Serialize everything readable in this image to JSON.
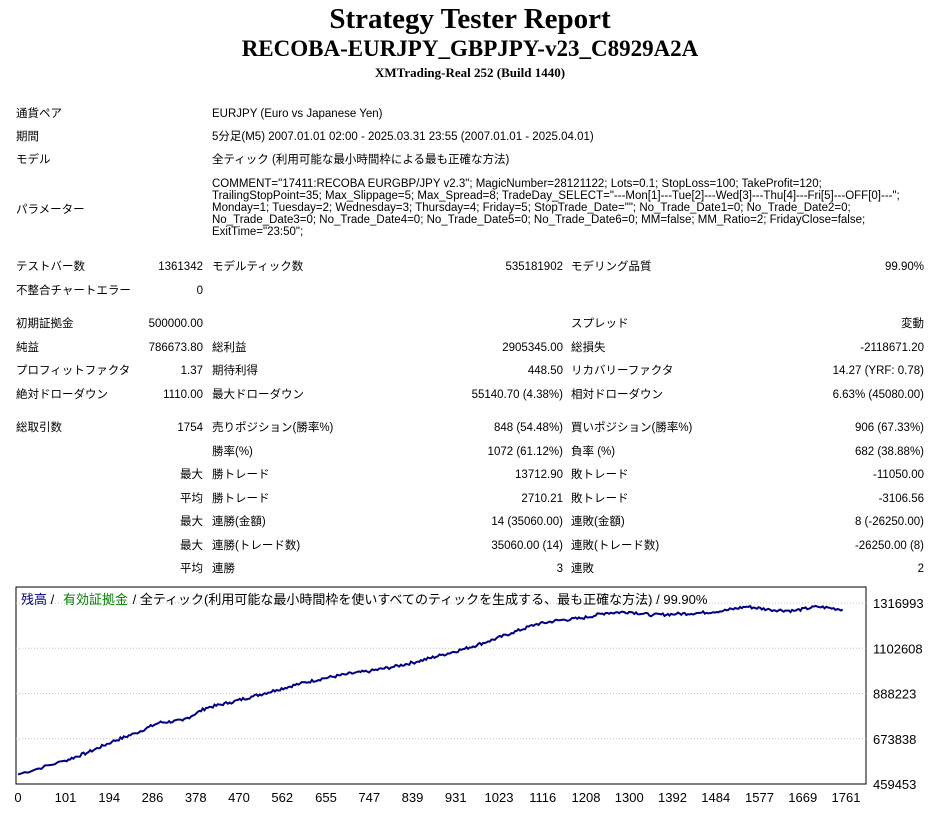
{
  "header": {
    "title": "Strategy Tester Report",
    "ea_name": "RECOBA-EURJPY_GBPJPY-v23_C8929A2A",
    "server": "XMTrading-Real 252 (Build 1440)"
  },
  "info": {
    "symbol_label": "通貨ペア",
    "symbol_value": "EURJPY (Euro vs Japanese Yen)",
    "period_label": "期間",
    "period_value": "5分足(M5) 2007.01.01 02:00 - 2025.03.31 23:55 (2007.01.01 - 2025.04.01)",
    "model_label": "モデル",
    "model_value": "全ティック (利用可能な最小時間枠による最も正確な方法)",
    "params_label": "パラメーター",
    "params_lines": [
      "COMMENT=\"17411:RECOBA EURGBP/JPY v2.3\"; MagicNumber=28121122; Lots=0.1; StopLoss=100; TakeProfit=120;",
      "TrailingStopPoint=35; Max_Slippage=5; Max_Spread=8; TradeDay_SELECT=\"---Mon[1]---Tue[2]---Wed[3]---Thu[4]---Fri[5]---OFF[0]---\";",
      "Monday=1; Tuesday=2; Wednesday=3; Thursday=4; Friday=5; StopTrade_Date=\"\"; No_Trade_Date1=0; No_Trade_Date2=0;",
      "No_Trade_Date3=0; No_Trade_Date4=0; No_Trade_Date5=0; No_Trade_Date6=0; MM=false; MM_Ratio=2; FridayClose=false;",
      "ExitTime=\"23:50\";"
    ]
  },
  "stats": {
    "bars_label": "テストバー数",
    "bars_value": "1361342",
    "ticks_label": "モデルティック数",
    "ticks_value": "535181902",
    "quality_label": "モデリング品質",
    "quality_value": "99.90%",
    "mismatch_label": "不整合チャートエラー",
    "mismatch_value": "0",
    "deposit_label": "初期証拠金",
    "deposit_value": "500000.00",
    "spread_label": "スプレッド",
    "spread_value": "変動",
    "net_label": "純益",
    "net_value": "786673.80",
    "gross_profit_label": "総利益",
    "gross_profit_value": "2905345.00",
    "gross_loss_label": "総損失",
    "gross_loss_value": "-2118671.20",
    "pf_label": "プロフィットファクタ",
    "pf_value": "1.37",
    "expected_label": "期待利得",
    "expected_value": "448.50",
    "recovery_label": "リカバリーファクタ",
    "recovery_value": "14.27 (YRF: 0.78)",
    "abs_dd_label": "絶対ドローダウン",
    "abs_dd_value": "1110.00",
    "max_dd_label": "最大ドローダウン",
    "max_dd_value": "55140.70 (4.38%)",
    "rel_dd_label": "相対ドローダウン",
    "rel_dd_value": "6.63% (45080.00)",
    "trades_label": "総取引数",
    "trades_value": "1754",
    "short_label": "売りポジション(勝率%)",
    "short_value": "848 (54.48%)",
    "long_label": "買いポジション(勝率%)",
    "long_value": "906 (67.33%)",
    "winrate_label": "勝率(%)",
    "winrate_value": "1072 (61.12%)",
    "lossrate_label": "負率 (%)",
    "lossrate_value": "682 (38.88%)",
    "max_label": "最大",
    "avg_label": "平均",
    "largest_win_label": "勝トレード",
    "largest_win_value": "13712.90",
    "largest_loss_label": "敗トレード",
    "largest_loss_value": "-11050.00",
    "avg_win_label": "勝トレード",
    "avg_win_value": "2710.21",
    "avg_loss_label": "敗トレード",
    "avg_loss_value": "-3106.56",
    "max_consec_wins_label": "連勝(金額)",
    "max_consec_wins_value": "14 (35060.00)",
    "max_consec_losses_label": "連敗(金額)",
    "max_consec_losses_value": "8 (-26250.00)",
    "max_consec_profit_label": "連勝(トレード数)",
    "max_consec_profit_value": "35060.00 (14)",
    "max_consec_loss_label": "連敗(トレード数)",
    "max_consec_loss_value": "-26250.00 (8)",
    "avg_consec_wins_label": "連勝",
    "avg_consec_wins_value": "3",
    "avg_consec_losses_label": "連敗",
    "avg_consec_losses_value": "2"
  },
  "chart_legend": {
    "balance": "残高",
    "sep1": " / ",
    "equity": "有効証拠金",
    "rest": " / 全ティック(利用可能な最小時間枠を使いすべてのティックを生成する、最も正確な方法) / 99.90%"
  },
  "colors": {
    "balance": "#000080",
    "equity": "#008000",
    "grid": "#c0c0c0"
  },
  "chart_data": {
    "type": "line",
    "title": "",
    "xlabel": "",
    "ylabel": "",
    "x_ticks": [
      "0",
      "101",
      "194",
      "286",
      "378",
      "470",
      "562",
      "655",
      "747",
      "839",
      "931",
      "1023",
      "1116",
      "1208",
      "1300",
      "1392",
      "1484",
      "1577",
      "1669",
      "1761"
    ],
    "y_ticks": [
      "1316993",
      "1102608",
      "888223",
      "673838",
      "459453"
    ],
    "xlim": [
      0,
      1761
    ],
    "ylim": [
      459453,
      1316993
    ],
    "series": [
      {
        "name": "残高",
        "x": [
          0,
          100,
          150,
          200,
          250,
          300,
          350,
          400,
          450,
          500,
          550,
          600,
          650,
          700,
          750,
          800,
          850,
          900,
          950,
          1000,
          1050,
          1100,
          1150,
          1200,
          1250,
          1300,
          1350,
          1400,
          1450,
          1500,
          1550,
          1600,
          1650,
          1700,
          1754
        ],
        "y": [
          505000,
          570000,
          610000,
          660000,
          700000,
          750000,
          760000,
          820000,
          845000,
          875000,
          905000,
          935000,
          960000,
          980000,
          995000,
          1015000,
          1040000,
          1070000,
          1100000,
          1135000,
          1175000,
          1215000,
          1235000,
          1245000,
          1270000,
          1275000,
          1260000,
          1265000,
          1270000,
          1280000,
          1300000,
          1285000,
          1280000,
          1300000,
          1286000
        ]
      }
    ]
  }
}
